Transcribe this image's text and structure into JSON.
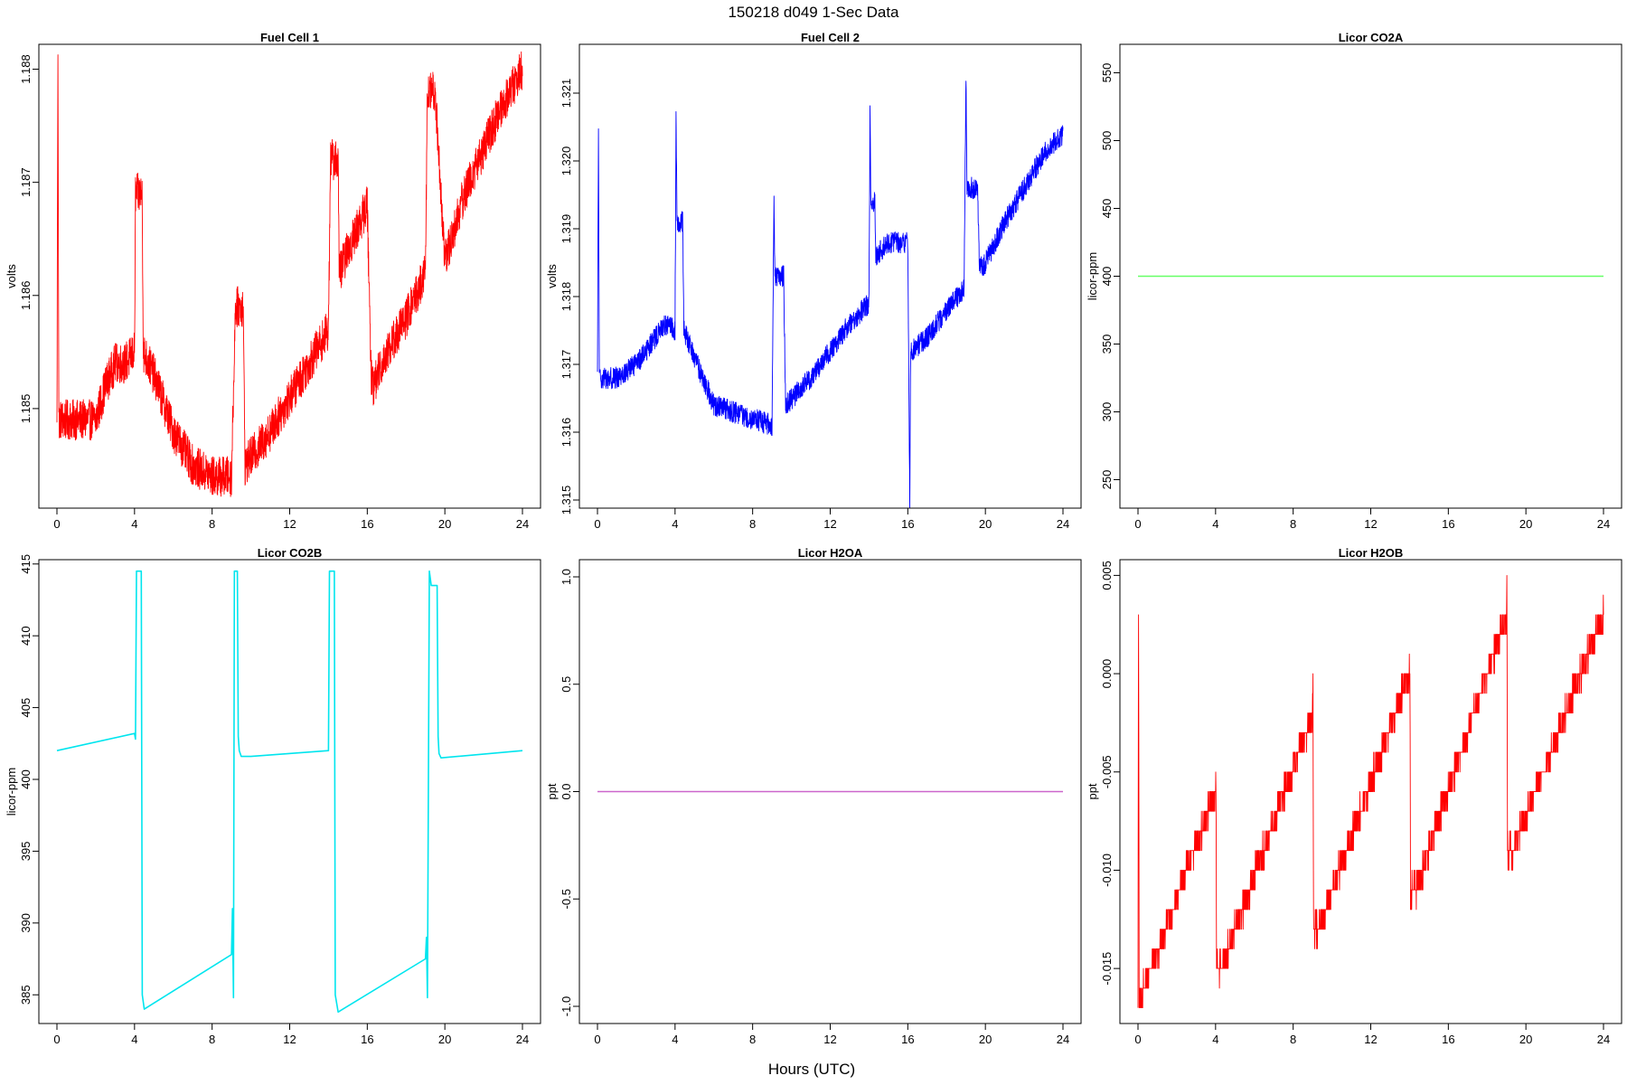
{
  "figure": {
    "title": "150218   d049   1-Sec Data",
    "xlabel": "Hours (UTC)"
  },
  "chart_data": [
    {
      "type": "line",
      "title": "Fuel Cell 1",
      "ylabel": "volts",
      "color": "#ff0000",
      "xlim": [
        0,
        24
      ],
      "ylim": [
        1.18412,
        1.18822
      ],
      "xticks": [
        0,
        4,
        8,
        12,
        16,
        20,
        24
      ],
      "yticks": [
        1.185,
        1.186,
        1.187,
        1.188
      ],
      "ytick_labels": [
        "1.185",
        "1.186",
        "1.187",
        "1.188"
      ],
      "noise": 0.00018,
      "series": [
        {
          "x": [
            0,
            0.05,
            0.1,
            1,
            2,
            2.5,
            3,
            3.5,
            4,
            4.05,
            4.4,
            4.45,
            5,
            6,
            7,
            8,
            9,
            9.2,
            9.6,
            9.7,
            11,
            12,
            13,
            14,
            14.1,
            14.5,
            14.55,
            15,
            16,
            16.2,
            16.3,
            17,
            18,
            19,
            19.1,
            19.5,
            20,
            21,
            22,
            23,
            24
          ],
          "y": [
            1.1848,
            1.1882,
            1.1849,
            1.1849,
            1.1849,
            1.1852,
            1.1854,
            1.1854,
            1.1855,
            1.1869,
            1.1869,
            1.1855,
            1.1853,
            1.1848,
            1.1845,
            1.1844,
            1.1844,
            1.1859,
            1.1859,
            1.1845,
            1.1848,
            1.1851,
            1.1854,
            1.1857,
            1.1872,
            1.1872,
            1.1862,
            1.1864,
            1.1868,
            1.1853,
            1.1852,
            1.1855,
            1.1858,
            1.1862,
            1.1878,
            1.1878,
            1.1863,
            1.1869,
            1.1873,
            1.1877,
            1.188
          ]
        }
      ]
    },
    {
      "type": "line",
      "title": "Fuel Cell 2",
      "ylabel": "volts",
      "color": "#0000ff",
      "xlim": [
        0,
        24
      ],
      "ylim": [
        1.31488,
        1.32172
      ],
      "xticks": [
        0,
        4,
        8,
        12,
        16,
        20,
        24
      ],
      "yticks": [
        1.315,
        1.316,
        1.317,
        1.318,
        1.319,
        1.32,
        1.321
      ],
      "ytick_labels": [
        "1.315",
        "1.316",
        "1.317",
        "1.318",
        "1.319",
        "1.320",
        "1.321"
      ],
      "noise": 0.00016,
      "series": [
        {
          "x": [
            0,
            0.05,
            0.1,
            1,
            2,
            3,
            3.5,
            4,
            4.05,
            4.1,
            4.4,
            4.45,
            5,
            6,
            7,
            8,
            9,
            9.1,
            9.15,
            9.2,
            9.6,
            9.7,
            11,
            12,
            13,
            14,
            14.05,
            14.1,
            14.3,
            14.35,
            15,
            16,
            16.1,
            16.15,
            16.2,
            17,
            18,
            18.9,
            19.0,
            19.05,
            19.1,
            19.6,
            19.7,
            20,
            21,
            22,
            23,
            24
          ],
          "y": [
            1.3168,
            1.3205,
            1.3168,
            1.3168,
            1.317,
            1.3174,
            1.3176,
            1.3175,
            1.3208,
            1.3191,
            1.3191,
            1.3175,
            1.3171,
            1.3164,
            1.3163,
            1.3162,
            1.3161,
            1.3195,
            1.3183,
            1.3183,
            1.3183,
            1.3164,
            1.3168,
            1.3172,
            1.3176,
            1.3179,
            1.3208,
            1.3194,
            1.3194,
            1.3186,
            1.3188,
            1.3188,
            1.315,
            1.3172,
            1.3172,
            1.3174,
            1.3178,
            1.3181,
            1.3213,
            1.3196,
            1.3196,
            1.3196,
            1.3184,
            1.3185,
            1.3191,
            1.3196,
            1.3201,
            1.3204
          ]
        }
      ]
    },
    {
      "type": "line",
      "title": "Licor CO2A",
      "ylabel": "licor-ppm",
      "color": "#66ff66",
      "xlim": [
        0,
        24
      ],
      "ylim": [
        229,
        571
      ],
      "xticks": [
        0,
        4,
        8,
        12,
        16,
        20,
        24
      ],
      "yticks": [
        250,
        300,
        350,
        400,
        450,
        500,
        550
      ],
      "ytick_labels": [
        "250",
        "300",
        "350",
        "400",
        "450",
        "500",
        "550"
      ],
      "noise": 0,
      "series": [
        {
          "x": [
            0,
            24
          ],
          "y": [
            400,
            400
          ]
        }
      ]
    },
    {
      "type": "line",
      "title": "Licor CO2B",
      "ylabel": "licor-ppm",
      "color": "#00e5ee",
      "xlim": [
        0,
        24
      ],
      "ylim": [
        383,
        415.3
      ],
      "xticks": [
        0,
        4,
        8,
        12,
        16,
        20,
        24
      ],
      "yticks": [
        385,
        390,
        395,
        400,
        405,
        410,
        415
      ],
      "ytick_labels": [
        "385",
        "390",
        "395",
        "400",
        "405",
        "410",
        "415"
      ],
      "noise": 0,
      "series": [
        {
          "x": [
            0,
            4,
            4.05,
            4.1,
            4.35,
            4.4,
            4.5,
            9.0,
            9.05,
            9.1,
            9.15,
            9.3,
            9.35,
            9.4,
            9.5,
            10,
            14.0,
            14.05,
            14.3,
            14.35,
            14.5,
            19.0,
            19.05,
            19.1,
            19.2,
            19.3,
            19.6,
            19.65,
            19.7,
            19.8,
            24
          ],
          "y": [
            402,
            403.2,
            402.8,
            414.5,
            414.5,
            385,
            384,
            387.8,
            391,
            384.8,
            414.5,
            414.5,
            403,
            402,
            401.6,
            401.6,
            402,
            414.5,
            414.5,
            385,
            383.8,
            387.5,
            389,
            384.8,
            414.5,
            413.5,
            413.5,
            403,
            401.8,
            401.5,
            402
          ]
        }
      ]
    },
    {
      "type": "line",
      "title": "Licor H2OA",
      "ylabel": "ppt",
      "color": "#cc66cc",
      "xlim": [
        0,
        24
      ],
      "ylim": [
        -1.08,
        1.08
      ],
      "xticks": [
        0,
        4,
        8,
        12,
        16,
        20,
        24
      ],
      "yticks": [
        -1.0,
        -0.5,
        0.0,
        0.5,
        1.0
      ],
      "ytick_labels": [
        "-1.0",
        "-0.5",
        "0.0",
        "0.5",
        "1.0"
      ],
      "noise": 0,
      "series": [
        {
          "x": [
            0,
            24
          ],
          "y": [
            0,
            0
          ]
        }
      ]
    },
    {
      "type": "line",
      "title": "Licor H2OB",
      "ylabel": "ppt",
      "color": "#ff0000",
      "xlim": [
        0,
        24
      ],
      "ylim": [
        -0.0178,
        0.0058
      ],
      "xticks": [
        0,
        4,
        8,
        12,
        16,
        20,
        24
      ],
      "yticks": [
        -0.015,
        -0.01,
        -0.005,
        0.0,
        0.005
      ],
      "ytick_labels": [
        "-0.015",
        "-0.010",
        "-0.005",
        "0.000",
        "0.005"
      ],
      "noise": 0.0007,
      "quantize": 0.001,
      "series": [
        {
          "x": [
            0,
            0.03,
            0.06,
            0.3,
            4.0,
            4.02,
            4.05,
            4.3,
            9.0,
            9.02,
            9.05,
            9.3,
            14.0,
            14.02,
            14.05,
            14.3,
            19.0,
            19.02,
            19.05,
            19.3,
            24
          ],
          "y": [
            -0.016,
            0.004,
            -0.017,
            -0.016,
            -0.006,
            -0.005,
            -0.015,
            -0.015,
            -0.002,
            -0.001,
            -0.013,
            -0.013,
            0.0,
            0.001,
            -0.011,
            -0.011,
            0.003,
            0.005,
            -0.009,
            -0.009,
            0.003
          ]
        }
      ]
    }
  ]
}
